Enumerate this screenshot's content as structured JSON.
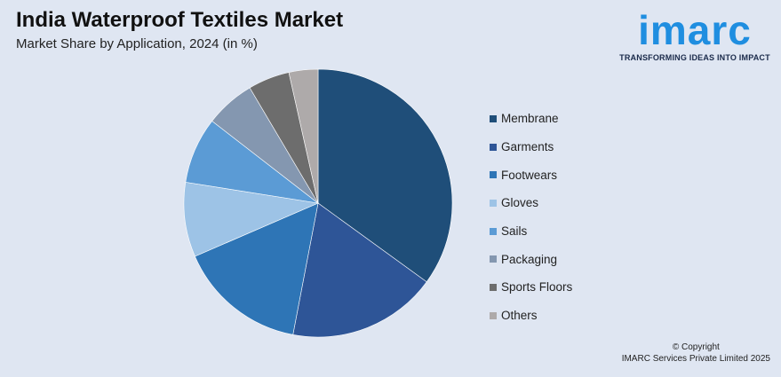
{
  "header": {
    "title": "India Waterproof Textiles Market",
    "subtitle": "Market Share by Application, 2024 (in %)"
  },
  "logo": {
    "wordmark": "imarc",
    "tagline": "TRANSFORMING IDEAS INTO IMPACT"
  },
  "chart_data": {
    "type": "pie",
    "title": "",
    "categories": [
      "Membrane",
      "Garments",
      "Footwears",
      "Gloves",
      "Sails",
      "Packaging",
      "Sports Floors",
      "Others"
    ],
    "values": [
      35,
      18,
      15.5,
      9,
      8,
      6,
      5,
      3.5
    ],
    "colors": [
      "#1f4e79",
      "#2e5597",
      "#2e75b6",
      "#9dc3e6",
      "#5b9bd5",
      "#8497b0",
      "#6d6d6d",
      "#aeaaaa"
    ],
    "start_angle_deg": 0,
    "direction": "clockwise",
    "legend_position": "right"
  },
  "footer": {
    "copyright_line1": "© Copyright",
    "copyright_line2": "IMARC Services Private Limited 2025"
  }
}
